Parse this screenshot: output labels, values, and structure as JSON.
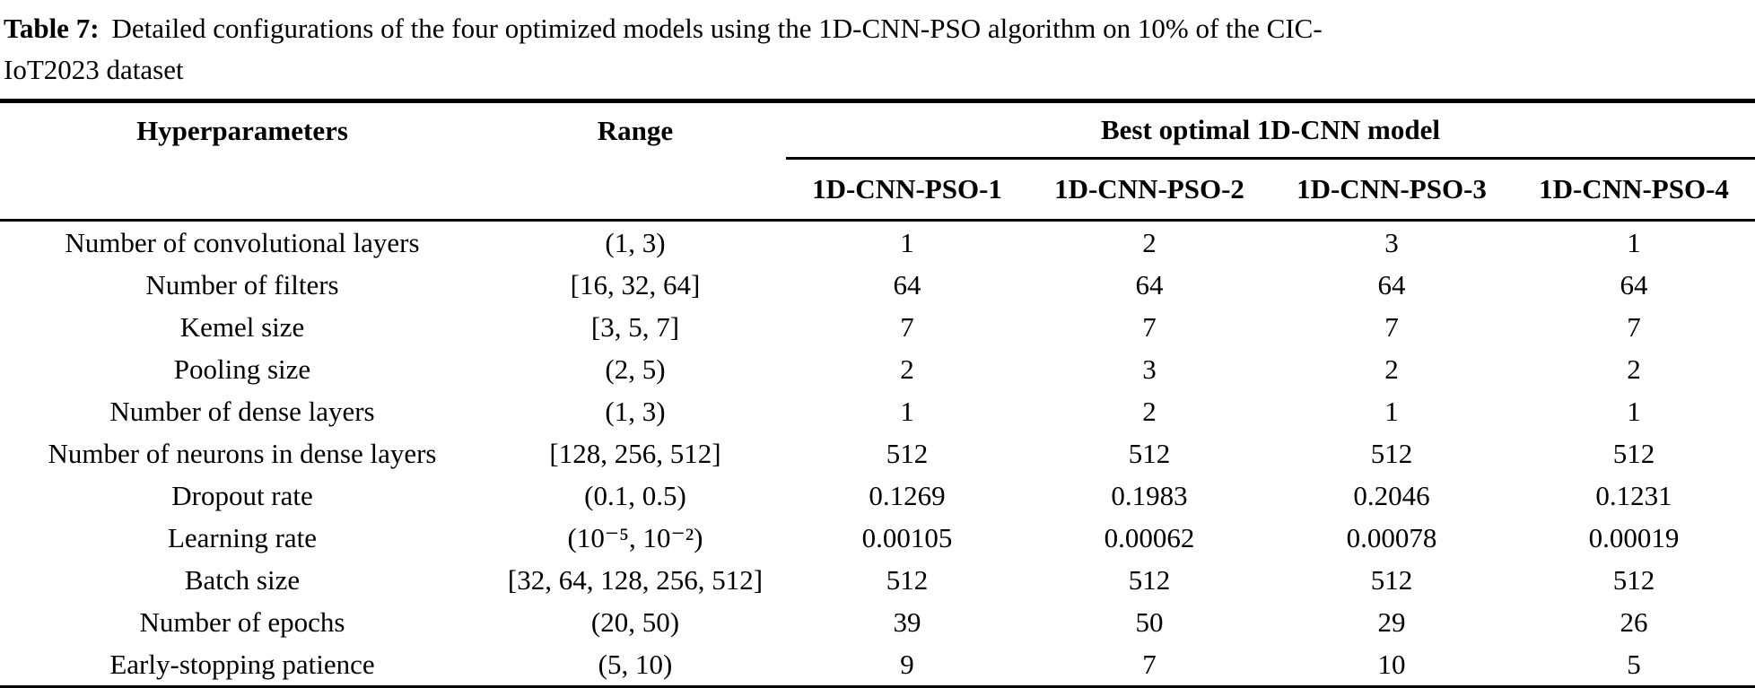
{
  "caption": {
    "label": "Table 7:",
    "text_line1": "Detailed configurations of the four optimized models using the 1D-CNN-PSO algorithm on 10% of the CIC-",
    "text_line2": "IoT2023 dataset"
  },
  "table": {
    "col_headers": {
      "param": "Hyperparameters",
      "range": "Range",
      "group": "Best optimal 1D-CNN model",
      "models": [
        "1D-CNN-PSO-1",
        "1D-CNN-PSO-2",
        "1D-CNN-PSO-3",
        "1D-CNN-PSO-4"
      ]
    },
    "rows": [
      {
        "param": "Number of convolutional layers",
        "range": "(1, 3)",
        "values": [
          "1",
          "2",
          "3",
          "1"
        ]
      },
      {
        "param": "Number of filters",
        "range": "[16, 32, 64]",
        "values": [
          "64",
          "64",
          "64",
          "64"
        ]
      },
      {
        "param": "Kemel size",
        "range": "[3, 5, 7]",
        "values": [
          "7",
          "7",
          "7",
          "7"
        ]
      },
      {
        "param": "Pooling size",
        "range": "(2, 5)",
        "values": [
          "2",
          "3",
          "2",
          "2"
        ]
      },
      {
        "param": "Number of dense layers",
        "range": "(1, 3)",
        "values": [
          "1",
          "2",
          "1",
          "1"
        ]
      },
      {
        "param": "Number of neurons in dense layers",
        "range": "[128, 256, 512]",
        "values": [
          "512",
          "512",
          "512",
          "512"
        ]
      },
      {
        "param": "Dropout rate",
        "range": "(0.1, 0.5)",
        "values": [
          "0.1269",
          "0.1983",
          "0.2046",
          "0.1231"
        ]
      },
      {
        "param": "Learning rate",
        "range": "(10⁻⁵, 10⁻²)",
        "values": [
          "0.00105",
          "0.00062",
          "0.00078",
          "0.00019"
        ]
      },
      {
        "param": "Batch size",
        "range": "[32, 64, 128, 256, 512]",
        "values": [
          "512",
          "512",
          "512",
          "512"
        ]
      },
      {
        "param": "Number of epochs",
        "range": "(20, 50)",
        "values": [
          "39",
          "50",
          "29",
          "26"
        ]
      },
      {
        "param": "Early-stopping patience",
        "range": "(5, 10)",
        "values": [
          "9",
          "7",
          "10",
          "5"
        ]
      }
    ]
  }
}
